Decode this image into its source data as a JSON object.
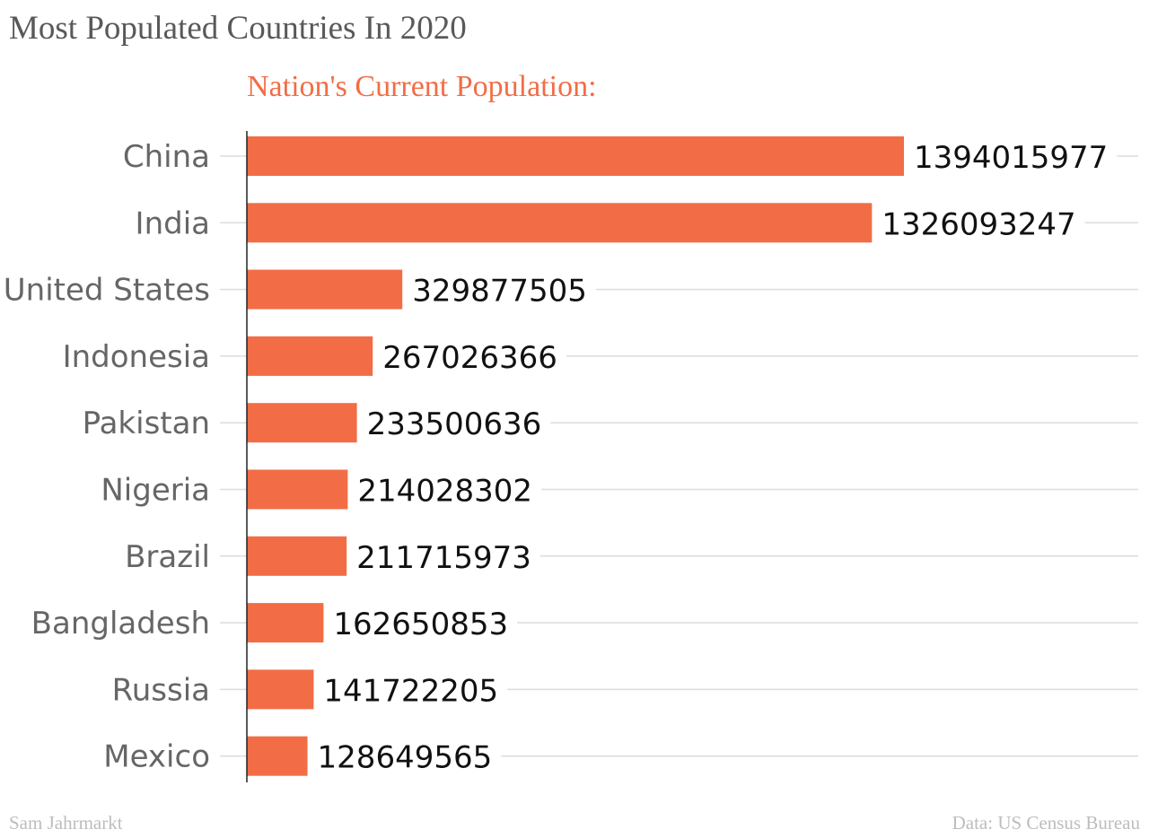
{
  "title": "Most Populated Countries In 2020",
  "footer": {
    "credit": "Sam Jahrmarkt",
    "source": "Data: US Census Bureau"
  },
  "colors": {
    "bar": "#f26d45",
    "title": "#595959",
    "subtitle": "#f26d45",
    "grid": "#dcdcdc",
    "axis": "#222222",
    "footer": "#bdbdbd"
  },
  "chart_data": {
    "type": "bar",
    "orientation": "horizontal",
    "title": "Nation's Current Population:",
    "categories": [
      "China",
      "India",
      "United States",
      "Indonesia",
      "Pakistan",
      "Nigeria",
      "Brazil",
      "Bangladesh",
      "Russia",
      "Mexico"
    ],
    "values": [
      1394015977,
      1326093247,
      329877505,
      267026366,
      233500636,
      214028302,
      211715973,
      162650853,
      141722205,
      128649565
    ],
    "value_labels": [
      "1394015977",
      "1326093247",
      "329877505",
      "267026366",
      "233500636",
      "214028302",
      "211715973",
      "162650853",
      "141722205",
      "128649565"
    ],
    "xlim": [
      0,
      1394015977
    ],
    "grid": true,
    "legend": "none"
  }
}
